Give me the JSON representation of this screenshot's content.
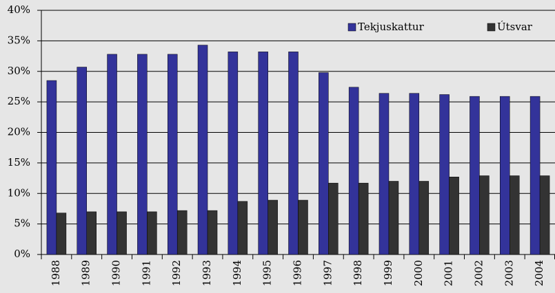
{
  "chart_data": {
    "type": "bar",
    "categories": [
      "1988",
      "1989",
      "1990",
      "1991",
      "1992",
      "1993",
      "1994",
      "1995",
      "1996",
      "1997",
      "1998",
      "1999",
      "2000",
      "2001",
      "2002",
      "2003",
      "2004"
    ],
    "series": [
      {
        "name": "Tekjuskattur",
        "color": "#33339a",
        "values": [
          28.5,
          30.7,
          32.8,
          32.8,
          32.8,
          34.3,
          33.2,
          33.2,
          33.2,
          29.8,
          27.4,
          26.4,
          26.4,
          26.2,
          25.9,
          25.9,
          25.9
        ]
      },
      {
        "name": "Útsvar",
        "color": "#333333",
        "values": [
          6.8,
          7.0,
          7.0,
          7.0,
          7.2,
          7.2,
          8.7,
          8.9,
          8.9,
          11.7,
          11.7,
          12.0,
          12.0,
          12.7,
          12.9,
          12.9,
          12.9
        ]
      }
    ],
    "ylim": [
      0,
      40
    ],
    "yticks": [
      {
        "value": 0,
        "label": "0%"
      },
      {
        "value": 5,
        "label": "5%"
      },
      {
        "value": 10,
        "label": "10%"
      },
      {
        "value": 15,
        "label": "15%"
      },
      {
        "value": 20,
        "label": "20%"
      },
      {
        "value": 25,
        "label": "25%"
      },
      {
        "value": 30,
        "label": "30%"
      },
      {
        "value": 35,
        "label": "35%"
      },
      {
        "value": 40,
        "label": "40%"
      }
    ],
    "grid": true,
    "legend": "top-right"
  }
}
